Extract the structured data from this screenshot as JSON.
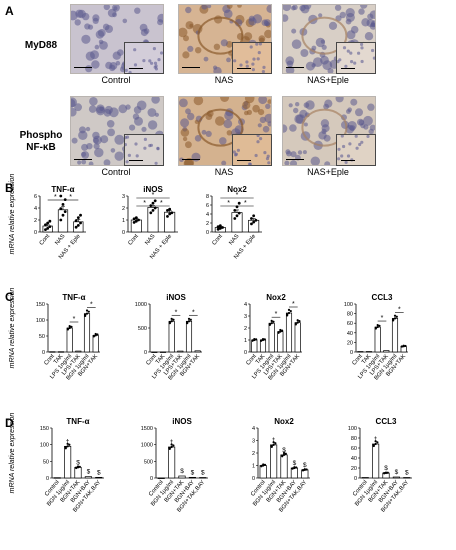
{
  "figure": {
    "panels": [
      {
        "id": "A",
        "rows": [
          {
            "label": [
              "MyD88"
            ],
            "captions": [
              "Control",
              "NAS",
              "NAS+Eple"
            ]
          },
          {
            "label": [
              "Phospho",
              "NF-κB"
            ],
            "captions": [
              "Control",
              "NAS",
              "NAS+Eple"
            ]
          }
        ]
      },
      {
        "id": "B"
      },
      {
        "id": "C"
      },
      {
        "id": "D"
      }
    ],
    "ylabel": "mRNA relative expression"
  },
  "chart_data": [
    {
      "panel": "B",
      "type": "bar",
      "title": "TNF-α",
      "categories": [
        "Cont",
        "NAS",
        "NAS + Eple"
      ],
      "values": [
        1.0,
        3.7,
        1.7
      ],
      "errors": [
        0.3,
        0.6,
        0.4
      ],
      "ylim": [
        0,
        6
      ],
      "yticks": [
        0,
        2,
        4,
        6
      ],
      "sig": [
        [
          0,
          1,
          "*"
        ],
        [
          1,
          2,
          "*"
        ]
      ],
      "points": [
        [
          0.4,
          0.6,
          0.9,
          1.2,
          1.5,
          1.8
        ],
        [
          2.0,
          2.8,
          3.4,
          3.9,
          4.6,
          5.4,
          6.0
        ],
        [
          0.8,
          1.1,
          1.5,
          1.9,
          2.4,
          2.8
        ]
      ]
    },
    {
      "panel": "B",
      "type": "bar",
      "title": "iNOS",
      "categories": [
        "Cont",
        "NAS",
        "NAS + Eple"
      ],
      "values": [
        1.0,
        2.05,
        1.65
      ],
      "errors": [
        0.1,
        0.15,
        0.15
      ],
      "ylim": [
        0,
        3
      ],
      "yticks": [
        0,
        1,
        2,
        3
      ],
      "sig": [
        [
          0,
          1,
          "*"
        ],
        [
          0,
          2,
          "*"
        ],
        [
          1,
          2,
          "*"
        ]
      ],
      "points": [
        [
          0.8,
          0.9,
          1.0,
          1.1,
          1.2
        ],
        [
          1.6,
          1.8,
          2.0,
          2.2,
          2.4,
          2.6
        ],
        [
          1.3,
          1.5,
          1.6,
          1.8,
          1.9
        ]
      ]
    },
    {
      "panel": "B",
      "type": "bar",
      "title": "Nox2",
      "categories": [
        "Cont",
        "NAS",
        "NAS + Eple"
      ],
      "values": [
        1.0,
        4.3,
        2.6
      ],
      "errors": [
        0.2,
        0.6,
        0.4
      ],
      "ylim": [
        0,
        8
      ],
      "yticks": [
        0,
        2,
        4,
        6,
        8
      ],
      "sig": [
        [
          0,
          1,
          "*"
        ],
        [
          0,
          2,
          "*"
        ],
        [
          1,
          2,
          "*"
        ]
      ],
      "points": [
        [
          0.6,
          0.8,
          1.0,
          1.2,
          1.4
        ],
        [
          3.0,
          3.6,
          4.2,
          4.8,
          5.6,
          6.4
        ],
        [
          1.8,
          2.2,
          2.6,
          3.0,
          3.6
        ]
      ]
    },
    {
      "panel": "C",
      "type": "bar",
      "title": "TNF-α",
      "categories": [
        "Cont",
        "TAK",
        "LPS 1ng/ml",
        "LPS+TAK",
        "BGN 1µg/ml",
        "BGN+TAK"
      ],
      "values": [
        1,
        1,
        75,
        3,
        120,
        52
      ],
      "ylim": [
        0,
        150
      ],
      "yticks": [
        0,
        50,
        100,
        150
      ],
      "sig": [
        [
          2,
          3,
          "*"
        ],
        [
          4,
          5,
          "*"
        ]
      ]
    },
    {
      "panel": "C",
      "type": "bar",
      "title": "iNOS",
      "categories": [
        "Cont",
        "TAK",
        "LPS 1ng/ml",
        "LPS+TAK",
        "BGN 1µg/ml",
        "BGN+TAK"
      ],
      "values": [
        1,
        2,
        640,
        20,
        640,
        25
      ],
      "ylim": [
        0,
        1000
      ],
      "yticks": [
        0,
        500,
        1000
      ],
      "sig": [
        [
          2,
          3,
          "*"
        ],
        [
          4,
          5,
          "*"
        ]
      ]
    },
    {
      "panel": "C",
      "type": "bar",
      "title": "Nox2",
      "categories": [
        "Cont",
        "TAK",
        "LPS 1ng/ml",
        "LPS+TAK",
        "BGN 1µg/ml",
        "BGN+TAK"
      ],
      "values": [
        1.0,
        1.0,
        2.4,
        1.7,
        3.25,
        2.45
      ],
      "ylim": [
        0,
        4
      ],
      "yticks": [
        0,
        1,
        2,
        3,
        4
      ],
      "sig": [
        [
          2,
          3,
          "*"
        ],
        [
          4,
          5,
          "*"
        ]
      ]
    },
    {
      "panel": "C",
      "type": "bar",
      "title": "CCL3",
      "categories": [
        "Cont",
        "TAK",
        "LPS 1ng/ml",
        "LPS+TAK",
        "BGN 1µg/ml",
        "BGN+TAK"
      ],
      "values": [
        1,
        1,
        52,
        3,
        70,
        12
      ],
      "ylim": [
        0,
        100
      ],
      "yticks": [
        0,
        20,
        40,
        60,
        80,
        100
      ],
      "sig": [
        [
          2,
          3,
          "*"
        ],
        [
          4,
          5,
          "*"
        ]
      ]
    },
    {
      "panel": "D",
      "type": "bar",
      "title": "TNF-α",
      "categories": [
        "Control",
        "BGN 1µg/ml",
        "BGN+TAK",
        "BGN+BAY",
        "BGN+TAK,BAY"
      ],
      "values": [
        1,
        95,
        32,
        4,
        2
      ],
      "ylim": [
        0,
        150
      ],
      "yticks": [
        0,
        50,
        100,
        150
      ],
      "marks": [
        "",
        "†",
        "$",
        "$",
        "$"
      ]
    },
    {
      "panel": "D",
      "type": "bar",
      "title": "iNOS",
      "categories": [
        "Control",
        "BGN 1µg/ml",
        "BGN+TAK",
        "BGN+BAY",
        "BGN+TAK,BAY"
      ],
      "values": [
        1,
        930,
        60,
        20,
        15
      ],
      "ylim": [
        0,
        1500
      ],
      "yticks": [
        0,
        500,
        1000,
        1500
      ],
      "marks": [
        "",
        "†",
        "$",
        "$",
        "$"
      ]
    },
    {
      "panel": "D",
      "type": "bar",
      "title": "Nox2",
      "categories": [
        "Control",
        "BGN 1µg/ml",
        "BGN+TAK",
        "BGN+BAY",
        "BGN+TAK,BAY"
      ],
      "values": [
        1.0,
        2.65,
        1.85,
        0.8,
        0.65
      ],
      "ylim": [
        0,
        4
      ],
      "yticks": [
        0,
        1,
        2,
        3,
        4
      ],
      "marks": [
        "",
        "†",
        "$",
        "$",
        "$"
      ]
    },
    {
      "panel": "D",
      "type": "bar",
      "title": "CCL3",
      "categories": [
        "Control",
        "BGN 1µg/ml",
        "BGN+TAK",
        "BGN+BAY",
        "BGN+TAK,BAY"
      ],
      "values": [
        1,
        68,
        10,
        2,
        1
      ],
      "ylim": [
        0,
        100
      ],
      "yticks": [
        0,
        20,
        40,
        60,
        80,
        100
      ],
      "marks": [
        "",
        "†",
        "$",
        "$",
        "$"
      ]
    }
  ]
}
